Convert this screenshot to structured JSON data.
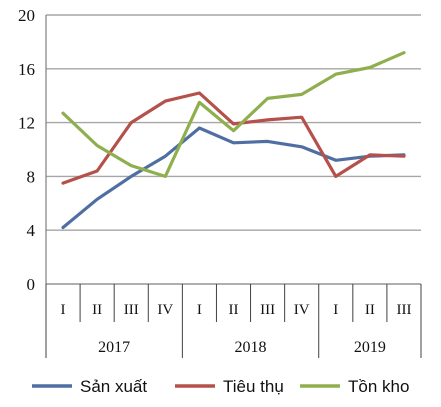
{
  "chart_data": {
    "type": "line",
    "title": "",
    "xlabel": "",
    "ylabel": "",
    "ylim": [
      0,
      20
    ],
    "yticks": [
      0,
      4,
      8,
      12,
      16,
      20
    ],
    "grid": true,
    "legend_position": "bottom",
    "categories": [
      "I",
      "II",
      "III",
      "IV",
      "I",
      "II",
      "III",
      "IV",
      "I",
      "II",
      "III"
    ],
    "year_groups": [
      {
        "label": "2017",
        "count": 4
      },
      {
        "label": "2018",
        "count": 4
      },
      {
        "label": "2019",
        "count": 3
      }
    ],
    "series": [
      {
        "name": "Sản xuất",
        "color": "#4F6FA3",
        "values": [
          4.2,
          6.3,
          8.0,
          9.5,
          11.6,
          10.5,
          10.6,
          10.2,
          9.2,
          9.5,
          9.6
        ]
      },
      {
        "name": "Tiêu thụ",
        "color": "#B5504B",
        "values": [
          7.5,
          8.4,
          12.0,
          13.6,
          14.2,
          11.9,
          12.2,
          12.4,
          8.0,
          9.6,
          9.5
        ]
      },
      {
        "name": "Tồn kho",
        "color": "#8FAF4F",
        "values": [
          12.7,
          10.3,
          8.8,
          8.0,
          13.5,
          11.4,
          13.8,
          14.1,
          15.6,
          16.1,
          17.2
        ]
      }
    ]
  }
}
